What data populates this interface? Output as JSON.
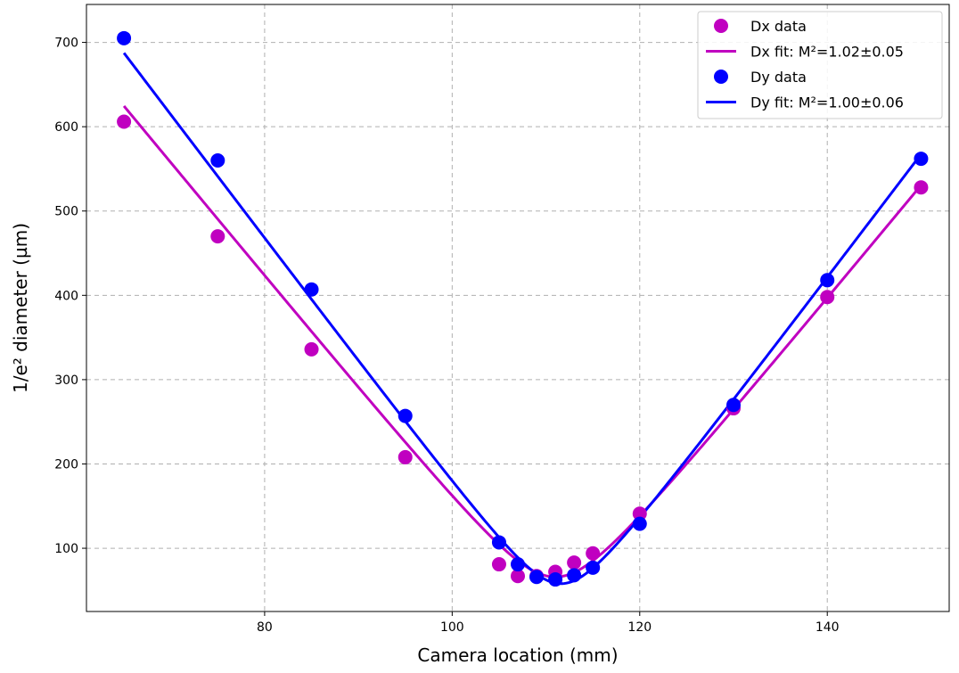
{
  "chart_data": {
    "type": "scatter",
    "title": "",
    "xlabel": "Camera location (mm)",
    "ylabel": "1/e² diameter (µm)",
    "xlim": [
      61,
      153
    ],
    "ylim": [
      25,
      745
    ],
    "xticks": [
      80,
      100,
      120,
      140
    ],
    "yticks": [
      100,
      200,
      300,
      400,
      500,
      600,
      700
    ],
    "grid": true,
    "legend_position": "top-right",
    "series": [
      {
        "name": "Dx data",
        "kind": "points",
        "color": "#c000c0",
        "x": [
          65,
          75,
          85,
          95,
          105,
          107,
          109,
          111,
          113,
          115,
          120,
          130,
          140,
          150
        ],
        "y": [
          606,
          470,
          336,
          208,
          81,
          67,
          67,
          72,
          83,
          94,
          141,
          266,
          398,
          528
        ]
      },
      {
        "name": "Dx fit: M²=1.02±0.05",
        "kind": "line",
        "color": "#c000c0",
        "fit": {
          "x0": 111.0,
          "w0": 66.0,
          "slope": 13.5
        }
      },
      {
        "name": "Dy data",
        "kind": "points",
        "color": "#0000ff",
        "x": [
          65,
          75,
          85,
          95,
          105,
          107,
          109,
          111,
          113,
          115,
          120,
          130,
          140,
          150
        ],
        "y": [
          705,
          560,
          407,
          257,
          107,
          81,
          66,
          63,
          68,
          77,
          129,
          270,
          418,
          562
        ]
      },
      {
        "name": "Dy fit: M²=1.00±0.06",
        "kind": "line",
        "color": "#0000ff",
        "fit": {
          "x0": 111.6,
          "w0": 58.0,
          "slope": 14.7
        }
      }
    ]
  }
}
